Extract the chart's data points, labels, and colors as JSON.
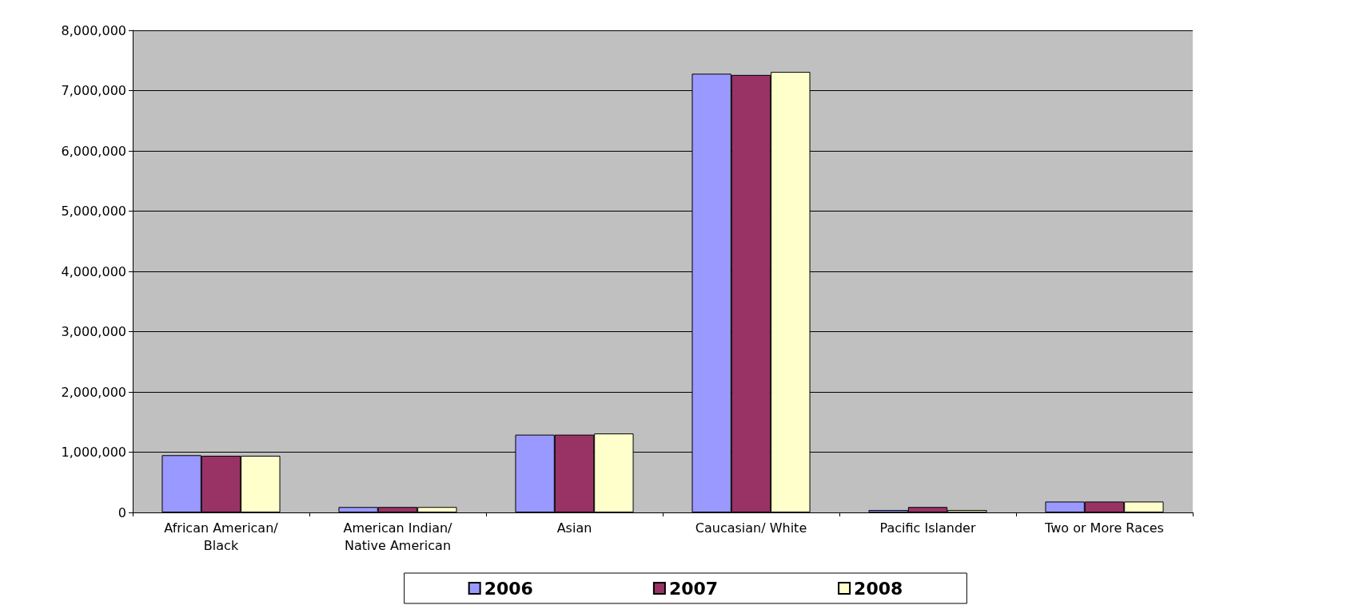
{
  "chart_data": {
    "type": "bar",
    "categories": [
      "African American/\nBlack",
      "American Indian/\nNative American",
      "Asian",
      "Caucasian/ White",
      "Pacific Islander",
      "Two or More Races"
    ],
    "series": [
      {
        "name": "2006",
        "color": "#9999ff",
        "values": [
          950000,
          90000,
          1290000,
          7280000,
          40000,
          180000
        ]
      },
      {
        "name": "2007",
        "color": "#993366",
        "values": [
          940000,
          90000,
          1290000,
          7260000,
          90000,
          180000
        ]
      },
      {
        "name": "2008",
        "color": "#ffffcc",
        "values": [
          940000,
          90000,
          1310000,
          7310000,
          40000,
          180000
        ]
      }
    ],
    "ylim": [
      0,
      8000000
    ],
    "yticks": [
      0,
      {
        "value": 1000000,
        "label": "1,000,000"
      },
      {
        "value": 2000000,
        "label": "2,000,000"
      },
      {
        "value": 3000000,
        "label": "3,000,000"
      },
      {
        "value": 4000000,
        "label": "4,000,000"
      },
      {
        "value": 5000000,
        "label": "5,000,000"
      },
      {
        "value": 6000000,
        "label": "6,000,000"
      },
      {
        "value": 7000000,
        "label": "7,000,000"
      },
      {
        "value": 8000000,
        "label": "8,000,000"
      }
    ],
    "grid": "y",
    "legend": "bottom"
  }
}
